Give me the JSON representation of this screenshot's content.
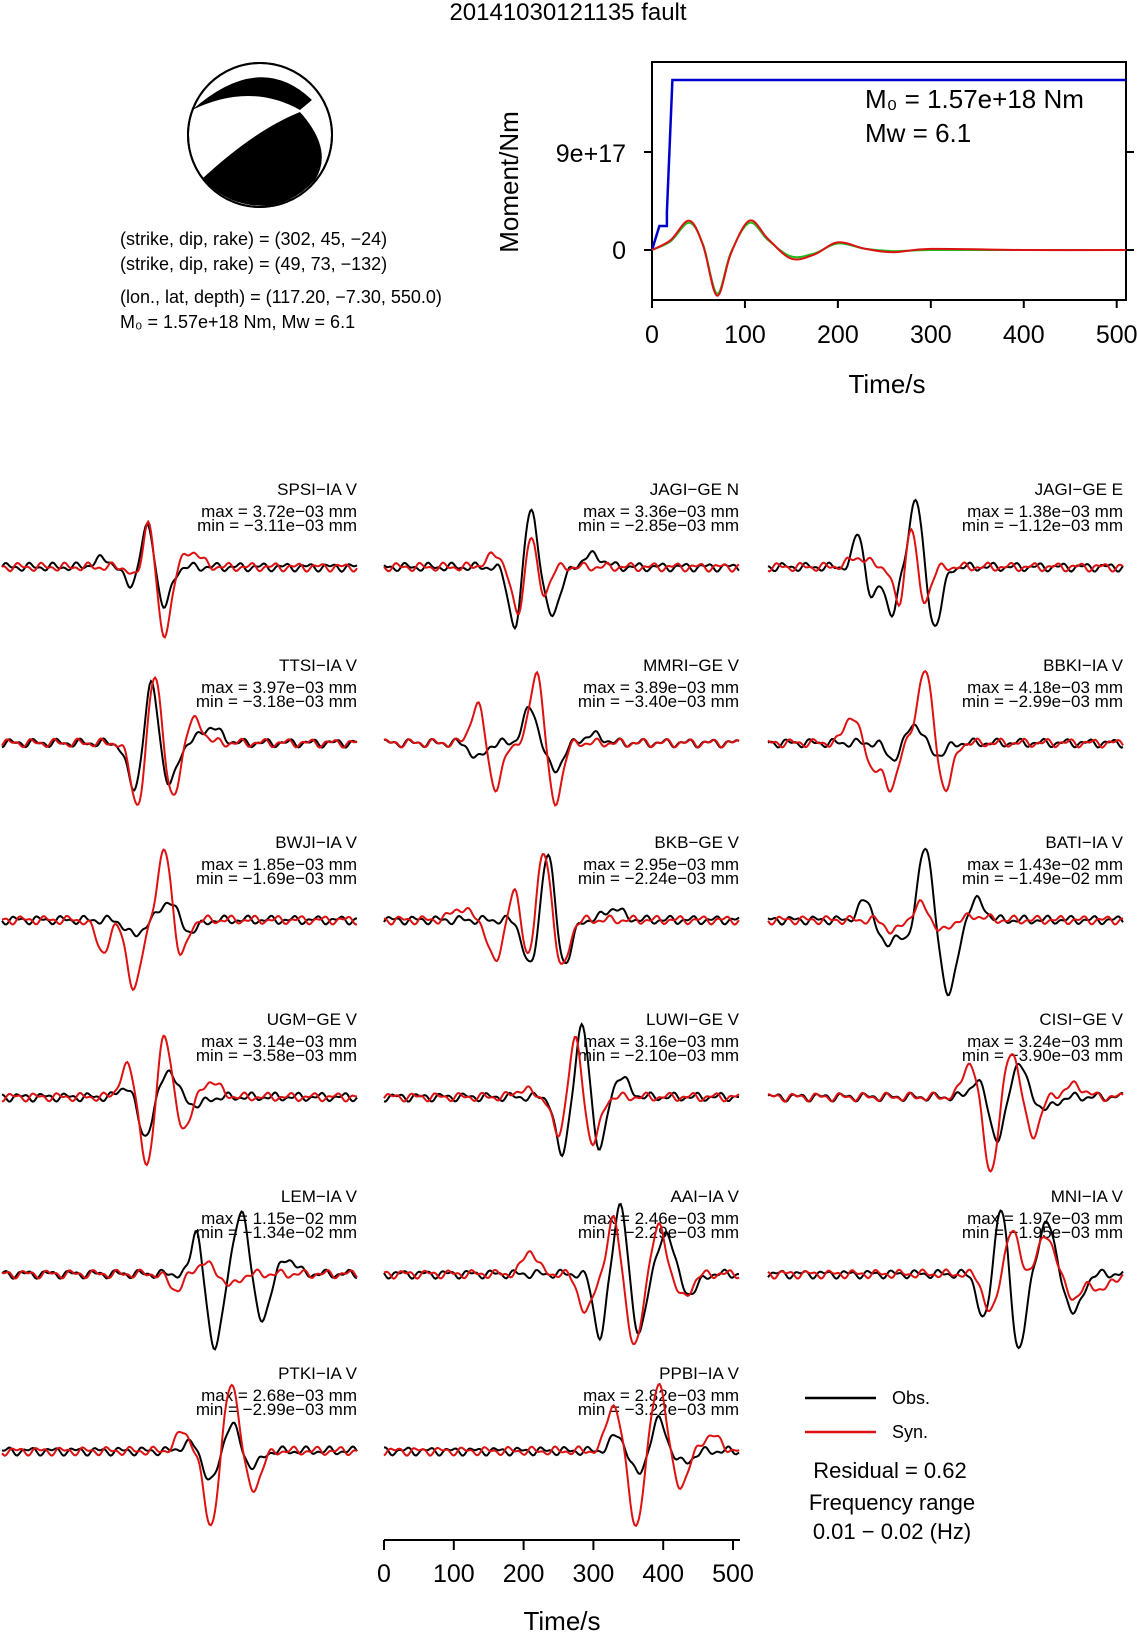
{
  "title": "20141030121135 fault",
  "mechanism": {
    "planes": [
      "(strike, dip, rake) = (302, 45, −24)",
      "(strike, dip, rake) = (49, 73, −132)"
    ],
    "location": "(lon., lat, depth) = (117.20, −7.30, 550.0)",
    "moment_summary": "M₀ = 1.57e+18 Nm, Mw = 6.1"
  },
  "moment_panel": {
    "ylabel": "Moment/Nm",
    "xlabel": "Time/s",
    "m0_text": "M₀ = 1.57e+18 Nm",
    "mw_text": "Mw = 6.1",
    "ytick_labels": [
      "9e+17",
      "0"
    ],
    "xtick_labels": [
      "0",
      "100",
      "200",
      "300",
      "400",
      "500"
    ]
  },
  "bottom_axis": {
    "xlabel": "Time/s",
    "xtick_labels": [
      "0",
      "100",
      "200",
      "300",
      "400",
      "500"
    ]
  },
  "legend": {
    "obs": "Obs.",
    "syn": "Syn.",
    "residual": "Residual = 0.62",
    "freq_label": "Frequency range",
    "freq_value": "0.01 − 0.02 (Hz)"
  },
  "colors": {
    "observed": "#000000",
    "synthetic": "#dd1111",
    "cumulative_moment": "#0000cc",
    "moment_rate_green": "#22bb22"
  },
  "chart_data": [
    {
      "type": "line",
      "title": "",
      "xlabel": "Time/s",
      "ylabel": "Moment/Nm",
      "xlim": [
        0,
        510
      ],
      "yticks": [
        0,
        9e+17
      ],
      "series": [
        {
          "x": [
            0,
            8,
            8,
            16,
            16,
            22,
            22,
            510
          ],
          "y": [
            0,
            2.2e+17,
            2.2e+17,
            2.2e+17,
            3.5e+17,
            1.57e+18,
            1.57e+18,
            1.57e+18
          ]
        },
        {
          "x": [
            0,
            20,
            40,
            55,
            70,
            85,
            105,
            125,
            150,
            175,
            200,
            230,
            260,
            300,
            400,
            510
          ],
          "y": [
            0,
            9e+16,
            2.7e+17,
            4e+16,
            -4.2e+17,
            -3e+16,
            2.7e+17,
            1e+17,
            -8e+16,
            -4e+16,
            7e+16,
            1e+16,
            -2e+16,
            1e+16,
            0.0,
            0.0
          ]
        },
        {
          "x": [
            0,
            20,
            40,
            55,
            70,
            85,
            105,
            125,
            150,
            175,
            200,
            230,
            260,
            300,
            400,
            510
          ],
          "y": [
            0,
            8e+16,
            2.5e+17,
            5e+16,
            -4e+17,
            -2e+16,
            2.5e+17,
            9e+16,
            -6e+16,
            -3e+16,
            6e+16,
            1e+16,
            -1e+16,
            0.0,
            0.0,
            0.0
          ]
        }
      ]
    },
    {
      "type": "line",
      "title": "Seismogram fits (Obs. vs Syn.)",
      "xlabel": "Time/s",
      "xlim": [
        0,
        510
      ],
      "stations": [
        {
          "name": "SPSI−IA V",
          "max": "max = 3.72e−03 mm",
          "min": "min = −3.11e−03 mm",
          "syn": [
            [
              200,
              -0.3,
              14
            ],
            [
              210,
              0.85,
              12
            ],
            [
              232,
              -0.9,
              14
            ],
            [
              272,
              0.2,
              18
            ]
          ],
          "obs": [
            [
              185,
              -0.25,
              14
            ],
            [
              210,
              0.55,
              14
            ],
            [
              232,
              -0.55,
              14
            ],
            [
              145,
              0.1,
              18
            ]
          ]
        },
        {
          "name": "JAGI−GE N",
          "max": "max = 3.36e−03 mm",
          "min": "min = −2.85e−03 mm",
          "syn": [
            [
              195,
              -0.8,
              14
            ],
            [
              210,
              0.8,
              14
            ],
            [
              225,
              -0.5,
              14
            ],
            [
              160,
              0.15,
              18
            ]
          ],
          "obs": [
            [
              190,
              -0.85,
              14
            ],
            [
              210,
              0.9,
              14
            ],
            [
              240,
              -0.6,
              18
            ],
            [
              300,
              0.15,
              20
            ]
          ]
        },
        {
          "name": "JAGI−GE E",
          "max": "max = 1.38e−03 mm",
          "min": "min = −1.12e−03 mm",
          "syn": [
            [
              190,
              -0.6,
              12
            ],
            [
              205,
              0.75,
              12
            ],
            [
              222,
              -0.5,
              14
            ],
            [
              130,
              0.12,
              20
            ]
          ],
          "obs": [
            [
              130,
              0.45,
              10
            ],
            [
              150,
              -0.4,
              12
            ],
            [
              178,
              -0.6,
              12
            ],
            [
              212,
              0.9,
              12
            ],
            [
              240,
              -0.75,
              14
            ]
          ]
        },
        {
          "name": "TTSI−IA V",
          "max": "max = 3.97e−03 mm",
          "min": "min = −3.18e−03 mm",
          "syn": [
            [
              195,
              -0.8,
              14
            ],
            [
              220,
              0.95,
              13
            ],
            [
              245,
              -0.75,
              15
            ],
            [
              275,
              0.3,
              18
            ]
          ],
          "obs": [
            [
              190,
              -0.6,
              14
            ],
            [
              215,
              0.8,
              13
            ],
            [
              240,
              -0.55,
              15
            ],
            [
              300,
              0.2,
              20
            ]
          ]
        },
        {
          "name": "MMRI−GE V",
          "max": "max = 3.89e−03 mm",
          "min": "min = −3.40e−03 mm",
          "syn": [
            [
              135,
              0.5,
              14
            ],
            [
              160,
              -0.6,
              14
            ],
            [
              220,
              0.95,
              13
            ],
            [
              245,
              -0.8,
              14
            ]
          ],
          "obs": [
            [
              135,
              -0.2,
              14
            ],
            [
              210,
              0.45,
              14
            ],
            [
              245,
              -0.35,
              16
            ],
            [
              300,
              0.1,
              20
            ]
          ]
        },
        {
          "name": "BBKI−IA V",
          "max": "max = 4.18e−03 mm",
          "min": "min = −2.99e−03 mm",
          "syn": [
            [
              120,
              0.35,
              14
            ],
            [
              150,
              -0.3,
              12
            ],
            [
              175,
              -0.6,
              14
            ],
            [
              225,
              0.95,
              14
            ],
            [
              255,
              -0.6,
              14
            ]
          ],
          "obs": [
            [
              180,
              -0.2,
              14
            ],
            [
              210,
              0.25,
              14
            ],
            [
              245,
              -0.15,
              16
            ]
          ]
        },
        {
          "name": "BWJI−IA V",
          "max": "max = 1.85e−03 mm",
          "min": "min = −1.69e−03 mm",
          "syn": [
            [
              145,
              -0.4,
              14
            ],
            [
              190,
              -0.9,
              14
            ],
            [
              235,
              0.95,
              14
            ],
            [
              255,
              -0.55,
              14
            ]
          ],
          "obs": [
            [
              190,
              -0.2,
              16
            ],
            [
              240,
              0.25,
              16
            ],
            [
              270,
              -0.15,
              18
            ]
          ]
        },
        {
          "name": "BKB−GE V",
          "max": "max = 2.95e−03 mm",
          "min": "min = −2.24e−03 mm",
          "syn": [
            [
              110,
              0.15,
              18
            ],
            [
              160,
              -0.55,
              14
            ],
            [
              190,
              0.5,
              14
            ],
            [
              205,
              -0.6,
              14
            ],
            [
              230,
              0.9,
              14
            ],
            [
              255,
              -0.65,
              14
            ]
          ],
          "obs": [
            [
              210,
              -0.6,
              14
            ],
            [
              235,
              0.9,
              12
            ],
            [
              260,
              -0.55,
              14
            ],
            [
              330,
              0.15,
              18
            ]
          ]
        },
        {
          "name": "BATI−IA V",
          "max": "max = 1.43e−02 mm",
          "min": "min = −1.49e−02 mm",
          "syn": [
            [
              180,
              -0.15,
              14
            ],
            [
              220,
              0.2,
              14
            ],
            [
              250,
              -0.15,
              14
            ],
            [
              300,
              0.05,
              18
            ]
          ],
          "obs": [
            [
              140,
              0.25,
              14
            ],
            [
              170,
              -0.35,
              14
            ],
            [
              200,
              -0.3,
              12
            ],
            [
              225,
              0.95,
              14
            ],
            [
              260,
              -0.95,
              16
            ],
            [
              300,
              0.25,
              16
            ]
          ]
        },
        {
          "name": "UGM−GE V",
          "max": "max = 3.14e−03 mm",
          "min": "min = −3.58e−03 mm",
          "syn": [
            [
              180,
              0.4,
              14
            ],
            [
              210,
              -0.95,
              14
            ],
            [
              232,
              0.9,
              14
            ],
            [
              260,
              -0.4,
              16
            ],
            [
              300,
              0.2,
              18
            ]
          ],
          "obs": [
            [
              180,
              0.15,
              14
            ],
            [
              205,
              -0.5,
              14
            ],
            [
              240,
              0.35,
              14
            ],
            [
              280,
              -0.1,
              18
            ]
          ]
        },
        {
          "name": "LUWI−GE V",
          "max": "max = 3.16e−03 mm",
          "min": "min = −2.10e−03 mm",
          "syn": [
            [
              250,
              -0.5,
              12
            ],
            [
              275,
              0.75,
              12
            ],
            [
              300,
              -0.6,
              14
            ],
            [
              200,
              0.1,
              16
            ]
          ],
          "obs": [
            [
              255,
              -0.75,
              12
            ],
            [
              285,
              0.9,
              12
            ],
            [
              310,
              -0.7,
              12
            ],
            [
              340,
              0.25,
              16
            ]
          ]
        },
        {
          "name": "CISI−GE V",
          "max": "max = 3.24e−03 mm",
          "min": "min = −3.90e−03 mm",
          "syn": [
            [
              290,
              0.45,
              14
            ],
            [
              320,
              -0.95,
              14
            ],
            [
              350,
              0.6,
              14
            ],
            [
              380,
              -0.5,
              14
            ],
            [
              440,
              0.15,
              20
            ]
          ],
          "obs": [
            [
              300,
              0.2,
              14
            ],
            [
              330,
              -0.55,
              14
            ],
            [
              360,
              0.45,
              14
            ],
            [
              400,
              -0.15,
              18
            ]
          ]
        },
        {
          "name": "LEM−IA V",
          "max": "max = 1.15e−02 mm",
          "min": "min = −1.34e−02 mm",
          "syn": [
            [
              250,
              -0.2,
              14
            ],
            [
              290,
              0.15,
              14
            ],
            [
              330,
              -0.15,
              14
            ]
          ],
          "obs": [
            [
              280,
              0.6,
              10
            ],
            [
              305,
              -0.95,
              14
            ],
            [
              345,
              0.85,
              14
            ],
            [
              372,
              -0.6,
              16
            ],
            [
              410,
              0.2,
              16
            ]
          ]
        },
        {
          "name": "AAI−IA V",
          "max": "max = 2.46e−03 mm",
          "min": "min = −2.29e−03 mm",
          "syn": [
            [
              210,
              0.3,
              14
            ],
            [
              290,
              -0.5,
              14
            ],
            [
              330,
              0.7,
              12
            ],
            [
              360,
              -0.95,
              14
            ],
            [
              395,
              0.6,
              14
            ],
            [
              430,
              -0.3,
              16
            ]
          ],
          "obs": [
            [
              310,
              -0.8,
              12
            ],
            [
              340,
              0.95,
              12
            ],
            [
              365,
              -0.75,
              14
            ],
            [
              405,
              0.55,
              14
            ],
            [
              440,
              -0.25,
              16
            ]
          ]
        },
        {
          "name": "MNI−IA V",
          "max": "max = 1.97e−03 mm",
          "min": "min = −1.95e−03 mm",
          "syn": [
            [
              320,
              -0.5,
              14
            ],
            [
              350,
              0.55,
              14
            ],
            [
              400,
              0.5,
              16
            ],
            [
              440,
              -0.3,
              18
            ],
            [
              480,
              -0.2,
              18
            ]
          ],
          "obs": [
            [
              310,
              -0.6,
              12
            ],
            [
              335,
              0.9,
              12
            ],
            [
              360,
              -0.95,
              14
            ],
            [
              400,
              0.7,
              14
            ],
            [
              440,
              -0.5,
              16
            ]
          ]
        },
        {
          "name": "PTKI−IA V",
          "max": "max = 2.68e−03 mm",
          "min": "min = −2.99e−03 mm",
          "syn": [
            [
              300,
              -0.95,
              14
            ],
            [
              330,
              0.9,
              14
            ],
            [
              360,
              -0.5,
              16
            ],
            [
              260,
              0.25,
              14
            ]
          ],
          "obs": [
            [
              300,
              -0.4,
              14
            ],
            [
              330,
              0.35,
              14
            ],
            [
              360,
              -0.2,
              16
            ],
            [
              270,
              0.1,
              16
            ]
          ]
        },
        {
          "name": "PPBI−IA V",
          "max": "max = 2.82e−03 mm",
          "min": "min = −3.22e−03 mm",
          "syn": [
            [
              330,
              0.6,
              14
            ],
            [
              362,
              -0.95,
              14
            ],
            [
              395,
              0.9,
              14
            ],
            [
              425,
              -0.45,
              16
            ],
            [
              470,
              0.2,
              18
            ]
          ],
          "obs": [
            [
              335,
              0.2,
              14
            ],
            [
              365,
              -0.3,
              14
            ],
            [
              395,
              0.4,
              14
            ],
            [
              430,
              -0.15,
              18
            ]
          ]
        }
      ]
    }
  ]
}
